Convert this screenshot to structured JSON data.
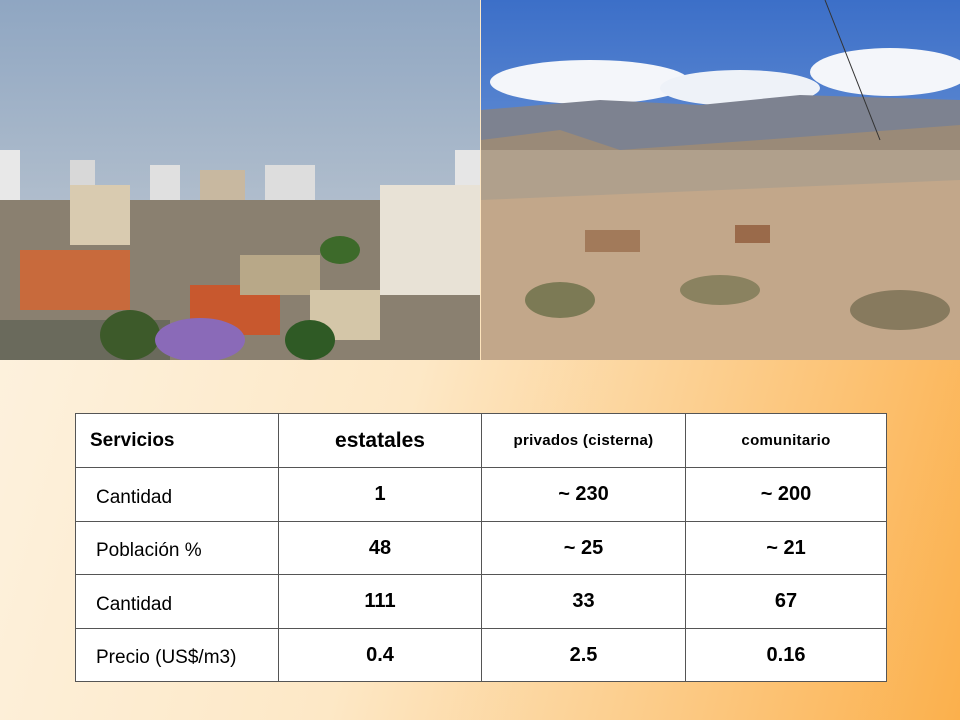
{
  "table": {
    "header": [
      "Servicios",
      "estatales",
      "privados (cisterna)",
      "comunitario"
    ],
    "rows": [
      [
        "Cantidad",
        "1",
        "~ 230",
        "~ 200"
      ],
      [
        "Población %",
        "48",
        "~ 25",
        "~ 21"
      ],
      [
        "Cantidad",
        "111",
        "33",
        "67"
      ],
      [
        "Precio (US$/m3)",
        "0.4",
        "2.5",
        "0.16"
      ]
    ]
  }
}
